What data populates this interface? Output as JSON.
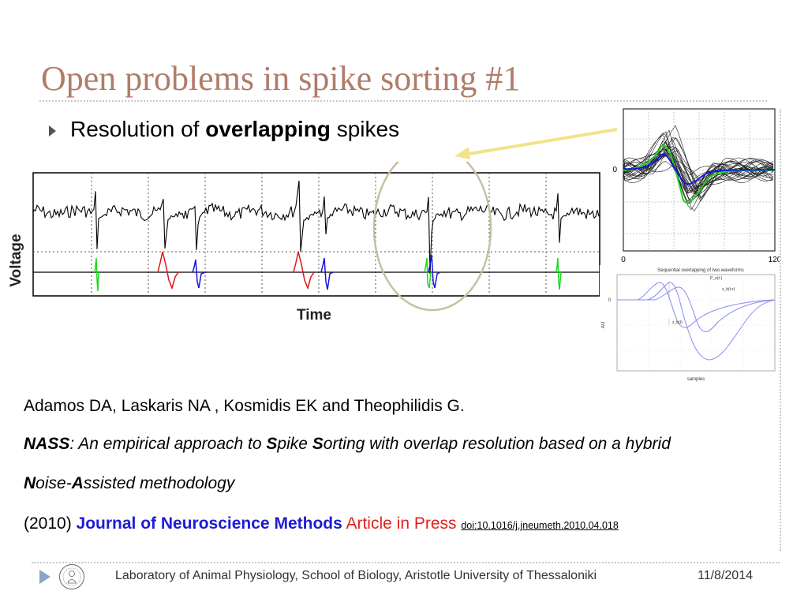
{
  "slide": {
    "title": "Open problems in spike sorting #1",
    "bullet": {
      "prefix": "Resolution of ",
      "emphasis": "overlapping",
      "suffix": " spikes"
    },
    "trace_figure": {
      "ylabel": "Voltage",
      "xlabel": "Time"
    },
    "waveforms_figure": {
      "y_tick": "0",
      "x_ticks": [
        "0",
        "120"
      ]
    },
    "overlap_figure": {
      "title": "Sequential overlapping of two waveforms",
      "ylabel": "AU",
      "xlabel": "samples",
      "y_tick": "0",
      "curve_labels": [
        "P_o(t-)",
        "z_b(t-τ)",
        "z_b(t)"
      ]
    },
    "reference": {
      "authors": "Adamos DA, Laskaris NA , Kosmidis EK and Theophilidis G.",
      "title_bold_1": "NASS",
      "title_part_1": ": An empirical approach to ",
      "title_bold_2": "S",
      "title_part_2": "pike ",
      "title_bold_3": "S",
      "title_part_3": "orting with overlap resolution based on a hybrid",
      "title_bold_4": "N",
      "title_part_4": "oise-",
      "title_bold_5": "A",
      "title_part_5": "ssisted methodology",
      "year": "(2010)",
      "journal": "Journal of Neuroscience Methods",
      "status": "Article in Press",
      "doi": "doi:10.1016/j.jneumeth.2010.04.018"
    },
    "footer": {
      "text": "Laboratory of Animal Physiology, School of Biology, Aristotle University of Thessaloniki",
      "date": "11/8/2014"
    },
    "colors": {
      "title": "#b07c6a",
      "journal": "#1c1cd6",
      "press": "#e0201c",
      "green": "#1fd61f",
      "red": "#e01515",
      "blue": "#1515e0"
    }
  }
}
